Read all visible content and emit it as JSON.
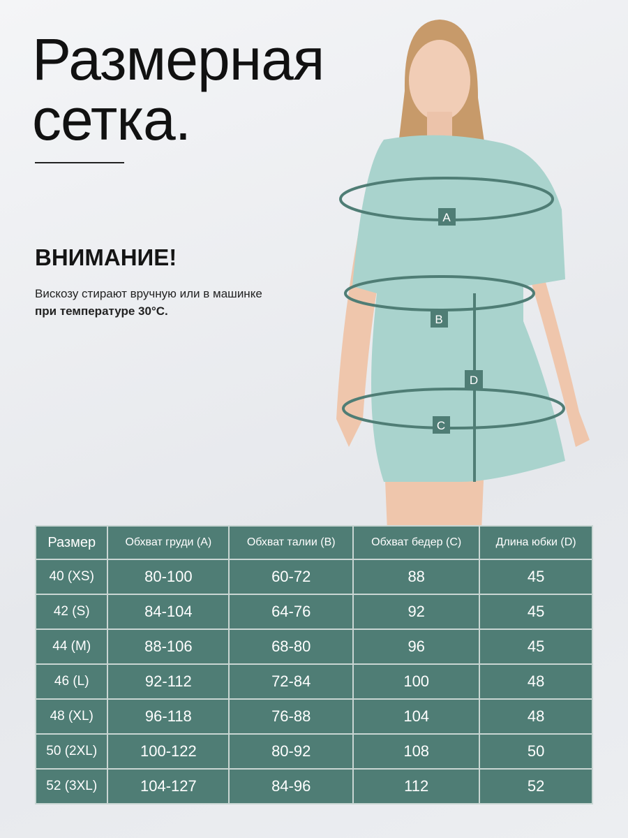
{
  "title_line1": "Размерная",
  "title_line2": "сетка.",
  "warning": "ВНИМАНИЕ!",
  "note_line1": "Вискозу стирают вручную или в машинке",
  "note_line2": "при температуре 30°C.",
  "markers": {
    "a": "A",
    "b": "B",
    "c": "C",
    "d": "D"
  },
  "colors": {
    "table": "#4f7d75",
    "dress": "#a9d3cd",
    "ring": "#4f7d75"
  },
  "table": {
    "headers": [
      "Размер",
      "Обхват груди (A)",
      "Обхват талии (B)",
      "Обхват бедер (C)",
      "Длина юбки (D)"
    ],
    "rows": [
      [
        "40 (XS)",
        "80-100",
        "60-72",
        "88",
        "45"
      ],
      [
        "42 (S)",
        "84-104",
        "64-76",
        "92",
        "45"
      ],
      [
        "44 (M)",
        "88-106",
        "68-80",
        "96",
        "45"
      ],
      [
        "46 (L)",
        "92-112",
        "72-84",
        "100",
        "48"
      ],
      [
        "48 (XL)",
        "96-118",
        "76-88",
        "104",
        "48"
      ],
      [
        "50 (2XL)",
        "100-122",
        "80-92",
        "108",
        "50"
      ],
      [
        "52 (3XL)",
        "104-127",
        "84-96",
        "112",
        "52"
      ]
    ]
  }
}
